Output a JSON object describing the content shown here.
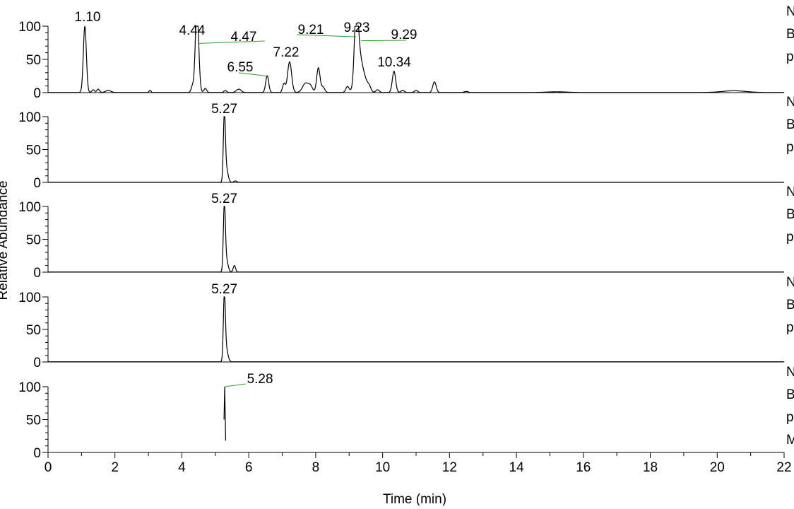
{
  "chart_data": {
    "type": "line",
    "xlabel": "Time (min)",
    "ylabel": "Relative Abundance",
    "xlim": [
      0,
      22
    ],
    "x_ticks": [
      "0",
      "2",
      "4",
      "6",
      "8",
      "10",
      "12",
      "14",
      "16",
      "18",
      "20",
      "22"
    ],
    "y_ticks": [
      "0",
      "50",
      "100"
    ],
    "grid": false,
    "colors": {
      "trace": "#000000",
      "leader": "#2ca02c"
    },
    "panels": [
      {
        "ylim": [
          0,
          100
        ],
        "side_labels": [
          "N",
          "B",
          "p"
        ],
        "annotations": [
          {
            "text": "1.10",
            "x": 1.1,
            "y": 100
          },
          {
            "text": "4.44",
            "x": 4.44,
            "y": 78
          },
          {
            "text": "4.47",
            "x": 4.47,
            "y": 72,
            "leader": true
          },
          {
            "text": "6.55",
            "x": 6.55,
            "y": 25,
            "leader": true
          },
          {
            "text": "7.22",
            "x": 7.22,
            "y": 46
          },
          {
            "text": "9.21",
            "x": 9.21,
            "y": 86,
            "leader": true
          },
          {
            "text": "9.23",
            "x": 9.23,
            "y": 88
          },
          {
            "text": "9.29",
            "x": 9.29,
            "y": 78,
            "leader": true
          },
          {
            "text": "10.34",
            "x": 10.34,
            "y": 32
          }
        ],
        "peaks": [
          {
            "x": 1.1,
            "h": 100,
            "w": 0.045
          },
          {
            "x": 1.35,
            "h": 4,
            "w": 0.04
          },
          {
            "x": 1.5,
            "h": 5,
            "w": 0.04
          },
          {
            "x": 1.8,
            "h": 3,
            "w": 0.08
          },
          {
            "x": 3.05,
            "h": 3,
            "w": 0.03
          },
          {
            "x": 4.32,
            "h": 10,
            "w": 0.04
          },
          {
            "x": 4.44,
            "h": 78,
            "w": 0.045
          },
          {
            "x": 4.47,
            "h": 60,
            "w": 0.05
          },
          {
            "x": 4.7,
            "h": 6,
            "w": 0.04
          },
          {
            "x": 5.3,
            "h": 3,
            "w": 0.04
          },
          {
            "x": 5.7,
            "h": 5,
            "w": 0.07
          },
          {
            "x": 6.55,
            "h": 25,
            "w": 0.045
          },
          {
            "x": 7.05,
            "h": 13,
            "w": 0.04
          },
          {
            "x": 7.22,
            "h": 46,
            "w": 0.06
          },
          {
            "x": 7.7,
            "h": 14,
            "w": 0.09
          },
          {
            "x": 7.85,
            "h": 8,
            "w": 0.06
          },
          {
            "x": 8.08,
            "h": 37,
            "w": 0.05
          },
          {
            "x": 8.22,
            "h": 8,
            "w": 0.05
          },
          {
            "x": 8.95,
            "h": 9,
            "w": 0.05
          },
          {
            "x": 9.21,
            "h": 85,
            "w": 0.05
          },
          {
            "x": 9.25,
            "h": 50,
            "w": 0.08
          },
          {
            "x": 9.38,
            "h": 33,
            "w": 0.12
          },
          {
            "x": 9.6,
            "h": 6,
            "w": 0.05
          },
          {
            "x": 9.85,
            "h": 4,
            "w": 0.05
          },
          {
            "x": 10.34,
            "h": 32,
            "w": 0.05
          },
          {
            "x": 10.6,
            "h": 3,
            "w": 0.05
          },
          {
            "x": 11.0,
            "h": 3,
            "w": 0.05
          },
          {
            "x": 11.55,
            "h": 16,
            "w": 0.05
          },
          {
            "x": 12.5,
            "h": 1.5,
            "w": 0.06
          },
          {
            "x": 15.2,
            "h": 1,
            "w": 0.3
          },
          {
            "x": 20.5,
            "h": 2.5,
            "w": 0.35
          }
        ]
      },
      {
        "ylim": [
          0,
          100
        ],
        "side_labels": [
          "N",
          "B",
          "p"
        ],
        "annotations": [
          {
            "text": "5.27",
            "x": 5.27,
            "y": 100
          }
        ],
        "peaks": [
          {
            "x": 5.27,
            "h": 100,
            "w": 0.03
          },
          {
            "x": 5.33,
            "h": 20,
            "w": 0.05
          },
          {
            "x": 5.6,
            "h": 2,
            "w": 0.04
          }
        ]
      },
      {
        "ylim": [
          0,
          100
        ],
        "side_labels": [
          "N",
          "B",
          "p"
        ],
        "annotations": [
          {
            "text": "5.27",
            "x": 5.27,
            "y": 100
          }
        ],
        "peaks": [
          {
            "x": 5.27,
            "h": 100,
            "w": 0.03
          },
          {
            "x": 5.33,
            "h": 18,
            "w": 0.05
          },
          {
            "x": 5.57,
            "h": 10,
            "w": 0.035
          }
        ]
      },
      {
        "ylim": [
          0,
          100
        ],
        "side_labels": [
          "N",
          "B",
          "p"
        ],
        "annotations": [
          {
            "text": "5.27",
            "x": 5.27,
            "y": 100
          }
        ],
        "peaks": [
          {
            "x": 5.27,
            "h": 100,
            "w": 0.03
          },
          {
            "x": 5.33,
            "h": 18,
            "w": 0.05
          }
        ]
      },
      {
        "ylim": [
          0,
          100
        ],
        "side_labels": [
          "N",
          "B",
          "p",
          "M"
        ],
        "annotations": [
          {
            "text": "5.28",
            "x": 5.28,
            "y": 100,
            "leader": true
          }
        ],
        "segment": [
          [
            5.26,
            50
          ],
          [
            5.28,
            100
          ],
          [
            5.31,
            18
          ]
        ]
      }
    ]
  }
}
